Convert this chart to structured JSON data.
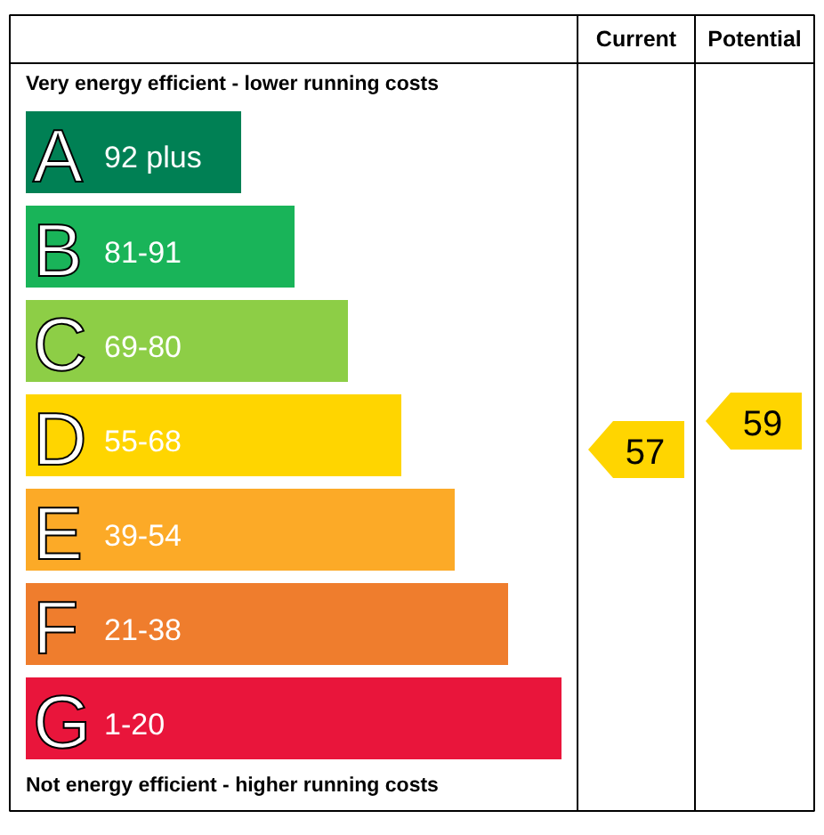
{
  "chart_data": {
    "type": "other",
    "categories": [
      "A",
      "B",
      "C",
      "D",
      "E",
      "F",
      "G"
    ],
    "value_labels": [
      "92 plus",
      "81-91",
      "69-80",
      "55-68",
      "39-54",
      "21-38",
      "1-20"
    ],
    "colors": [
      "#008054",
      "#19b459",
      "#8dce46",
      "#ffd500",
      "#fcaa27",
      "#ef7d2d",
      "#e9153b"
    ],
    "series": [
      {
        "color": "#ffd500",
        "values": [
          null,
          null,
          null,
          57,
          null,
          null,
          null
        ]
      },
      {
        "color": "#ffd500",
        "values": [
          null,
          null,
          null,
          59,
          null,
          null,
          null
        ]
      }
    ],
    "data_labels": true,
    "annotations": [
      "Very energy efficient - lower running costs",
      "Not energy efficient - higher running costs",
      "Current",
      "Potential"
    ]
  }
}
